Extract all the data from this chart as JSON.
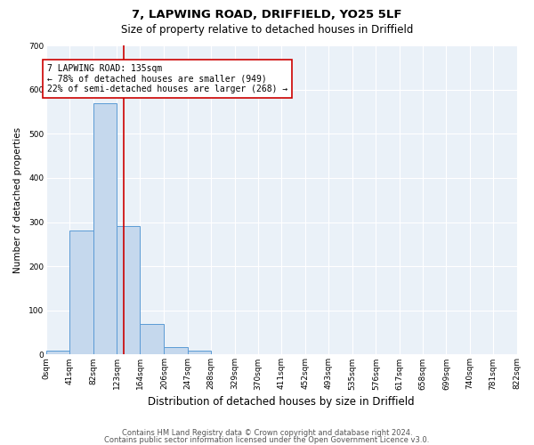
{
  "title1": "7, LAPWING ROAD, DRIFFIELD, YO25 5LF",
  "title2": "Size of property relative to detached houses in Driffield",
  "xlabel": "Distribution of detached houses by size in Driffield",
  "ylabel": "Number of detached properties",
  "bin_edges": [
    0,
    41,
    82,
    123,
    164,
    206,
    247,
    288,
    329,
    370,
    411,
    452,
    493,
    535,
    576,
    617,
    658,
    699,
    740,
    781,
    822
  ],
  "bin_labels": [
    "0sqm",
    "41sqm",
    "82sqm",
    "123sqm",
    "164sqm",
    "206sqm",
    "247sqm",
    "288sqm",
    "329sqm",
    "370sqm",
    "411sqm",
    "452sqm",
    "493sqm",
    "535sqm",
    "576sqm",
    "617sqm",
    "658sqm",
    "699sqm",
    "740sqm",
    "781sqm",
    "822sqm"
  ],
  "bar_heights": [
    8,
    280,
    570,
    290,
    70,
    17,
    9,
    0,
    0,
    0,
    0,
    0,
    0,
    0,
    0,
    0,
    0,
    0,
    0,
    0
  ],
  "bar_color": "#c5d8ed",
  "bar_edgecolor": "#5b9bd5",
  "property_value": 135,
  "vline_color": "#cc0000",
  "annotation_text": "7 LAPWING ROAD: 135sqm\n← 78% of detached houses are smaller (949)\n22% of semi-detached houses are larger (268) →",
  "annotation_box_edgecolor": "#cc0000",
  "annotation_box_facecolor": "#ffffff",
  "ylim": [
    0,
    700
  ],
  "yticks": [
    0,
    100,
    200,
    300,
    400,
    500,
    600,
    700
  ],
  "footer1": "Contains HM Land Registry data © Crown copyright and database right 2024.",
  "footer2": "Contains public sector information licensed under the Open Government Licence v3.0.",
  "plot_bg_color": "#eaf1f8",
  "title1_fontsize": 9.5,
  "title2_fontsize": 8.5,
  "xlabel_fontsize": 8.5,
  "ylabel_fontsize": 7.5,
  "tick_fontsize": 6.5,
  "annotation_fontsize": 7,
  "footer_fontsize": 6.0
}
